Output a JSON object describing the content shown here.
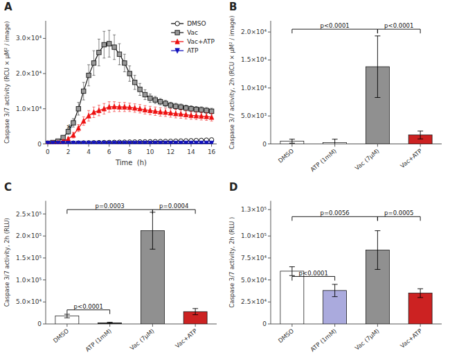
{
  "chart_data": [
    {
      "type": "line",
      "title": "A",
      "xlabel": "Time  (h)",
      "ylabel": "Caspase 3/7 activity (RCU × μM² / image)",
      "x": [
        0,
        0.5,
        1,
        1.5,
        2,
        2.5,
        3,
        3.5,
        4,
        4.5,
        5,
        5.5,
        6,
        6.5,
        7,
        7.5,
        8,
        8.5,
        9,
        9.5,
        10,
        10.5,
        11,
        11.5,
        12,
        12.5,
        13,
        13.5,
        14,
        14.5,
        15,
        15.5,
        16
      ],
      "xlim": [
        -0.2,
        16.5
      ],
      "xticks": [
        0,
        2,
        4,
        6,
        8,
        10,
        12,
        14,
        16
      ],
      "ylim": [
        0,
        35000
      ],
      "yticks": [
        0,
        {
          "value": 10000,
          "label": "1.0×10⁴"
        },
        {
          "value": 20000,
          "label": "2.0×10⁴"
        },
        {
          "value": 30000,
          "label": "3.0×10⁴"
        }
      ],
      "grid": false,
      "legend": "upper right",
      "series": [
        {
          "name": "DMSO",
          "color": "#111111",
          "marker": "circle",
          "values": [
            200,
            200,
            210,
            220,
            240,
            260,
            280,
            300,
            320,
            350,
            380,
            400,
            430,
            460,
            490,
            510,
            540,
            560,
            580,
            600,
            630,
            660,
            690,
            720,
            760,
            800,
            840,
            880,
            920,
            970,
            1020,
            1080,
            1150
          ],
          "errors": [
            60,
            60,
            60,
            60,
            70,
            70,
            70,
            70,
            70,
            80,
            80,
            80,
            80,
            80,
            80,
            80,
            80,
            80,
            80,
            80,
            80,
            80,
            80,
            80,
            80,
            80,
            80,
            80,
            80,
            80,
            80,
            80,
            80
          ]
        },
        {
          "name": "Vac",
          "color": "#222222",
          "marker": "square",
          "values": [
            200,
            400,
            800,
            1800,
            3500,
            6000,
            10000,
            15000,
            19500,
            23000,
            26000,
            28200,
            28500,
            27500,
            25500,
            23000,
            20000,
            17500,
            15500,
            14000,
            13000,
            12500,
            12000,
            11500,
            11000,
            10700,
            10500,
            10200,
            10000,
            9800,
            9700,
            9500,
            9300
          ],
          "errors": [
            100,
            150,
            300,
            600,
            800,
            1200,
            1800,
            2500,
            3000,
            3500,
            3800,
            3800,
            3800,
            3500,
            3000,
            2500,
            2200,
            2000,
            1700,
            1400,
            1200,
            1000,
            900,
            900,
            850,
            850,
            850,
            850,
            850,
            850,
            850,
            850,
            850
          ]
        },
        {
          "name": "Vac+ATP",
          "color": "#EE1111",
          "marker": "triangle-up",
          "values": [
            200,
            250,
            350,
            700,
            1400,
            2500,
            4500,
            6500,
            8000,
            9000,
            9500,
            10000,
            10500,
            10600,
            10500,
            10500,
            10400,
            10200,
            10000,
            9700,
            9500,
            9300,
            9100,
            9000,
            8800,
            8600,
            8500,
            8300,
            8100,
            8000,
            7900,
            7800,
            7600
          ],
          "errors": [
            100,
            100,
            200,
            300,
            500,
            800,
            1000,
            1200,
            1500,
            1500,
            1500,
            1500,
            1500,
            1400,
            1300,
            1300,
            1200,
            1200,
            1200,
            1200,
            1200,
            1200,
            1200,
            1200,
            1200,
            1200,
            1200,
            1200,
            1100,
            1100,
            1100,
            1100,
            1100
          ]
        },
        {
          "name": "ATP",
          "color": "#1111BB",
          "marker": "triangle-down",
          "values": [
            150,
            150,
            160,
            160,
            160,
            160,
            170,
            170,
            170,
            170,
            170,
            175,
            175,
            175,
            180,
            180,
            180,
            180,
            185,
            185,
            185,
            185,
            190,
            190,
            190,
            190,
            195,
            195,
            200,
            200,
            200,
            200,
            200
          ],
          "errors": [
            40,
            40,
            40,
            40,
            40,
            40,
            40,
            40,
            40,
            40,
            40,
            40,
            40,
            40,
            40,
            40,
            40,
            40,
            40,
            40,
            40,
            40,
            40,
            40,
            40,
            40,
            40,
            40,
            40,
            40,
            40,
            40,
            40
          ]
        }
      ],
      "annotations": [
        {
          "text": "*",
          "x": 2.1,
          "y": 4200
        }
      ]
    },
    {
      "type": "bar",
      "title": "B",
      "ylabel": "Caspase 3/7 activity, 2h (RCU × μM² / image)",
      "categories": [
        "DMSO",
        "ATP (1mM)",
        "Vac (7μM)",
        "Vac+ATP"
      ],
      "values": [
        500,
        250,
        13800,
        1600
      ],
      "errors": [
        350,
        600,
        5500,
        700
      ],
      "colors": [
        "#ffffff",
        "#ffffff",
        "#909090",
        "#CC2222"
      ],
      "ylim": [
        0,
        22000
      ],
      "yticks": [
        0,
        {
          "value": 5000,
          "label": "5.0×10³"
        },
        {
          "value": 10000,
          "label": "1.0×10⁴"
        },
        {
          "value": 15000,
          "label": "1.5×10⁴"
        },
        {
          "value": 20000,
          "label": "2.0×10⁴"
        }
      ],
      "grid": false,
      "annotations": [
        {
          "x1": "DMSO",
          "x2": "Vac (7μM)",
          "y": 20500,
          "text": "p<0.0001"
        },
        {
          "x1": "Vac (7μM)",
          "x2": "Vac+ATP",
          "y": 20500,
          "text": "p<0.0001"
        }
      ]
    },
    {
      "type": "bar",
      "title": "C",
      "ylabel": "Caspase 3/7 activity, 2h (RLU)",
      "categories": [
        "DMSO",
        "ATP (1mM)",
        "Vac (7μM)",
        "Vac+ATP"
      ],
      "values": [
        18000,
        2500,
        212000,
        28000
      ],
      "errors": [
        4000,
        1200,
        42000,
        7000
      ],
      "colors": [
        "#ffffff",
        "#333333",
        "#909090",
        "#CC2222"
      ],
      "ylim": [
        0,
        280000
      ],
      "yticks": [
        0,
        {
          "value": 50000,
          "label": "5.0×10⁴"
        },
        {
          "value": 100000,
          "label": "1.0×10⁵"
        },
        {
          "value": 150000,
          "label": "1.5×10⁵"
        },
        {
          "value": 200000,
          "label": "2.0×10⁵"
        },
        {
          "value": 250000,
          "label": "2.5×10⁵"
        }
      ],
      "grid": false,
      "annotations": [
        {
          "x1": "DMSO",
          "x2": "ATP (1mM)",
          "y": 32000,
          "text": "p<0.0001"
        },
        {
          "x1": "DMSO",
          "x2": "Vac (7μM)",
          "y": 260000,
          "text": "p=0.0003"
        },
        {
          "x1": "Vac (7μM)",
          "x2": "Vac+ATP",
          "y": 260000,
          "text": "p=0.0004"
        }
      ]
    },
    {
      "type": "bar",
      "title": "D",
      "ylabel": "Caspase 3/7 activity, 2h (RLU )",
      "categories": [
        "DMSO",
        "ATP (1mM)",
        "Vac (7μM)",
        "Vac+ATP"
      ],
      "values": [
        60000,
        38000,
        84000,
        35000
      ],
      "errors": [
        5000,
        7000,
        22000,
        5000
      ],
      "colors": [
        "#ffffff",
        "#aaaadd",
        "#909090",
        "#CC2222"
      ],
      "ylim": [
        0,
        140000
      ],
      "yticks": [
        0,
        {
          "value": 25000,
          "label": "2.5×10⁴"
        },
        {
          "value": 50000,
          "label": "5.0×10⁴"
        },
        {
          "value": 75000,
          "label": "7.5×10⁴"
        },
        {
          "value": 100000,
          "label": "1.0×10⁵"
        },
        {
          "value": 130000,
          "label": "1.3×10⁵"
        }
      ],
      "grid": false,
      "annotations": [
        {
          "x1": "DMSO",
          "x2": "ATP (1mM)",
          "y": 54000,
          "text": "p<0.0001"
        },
        {
          "x1": "DMSO",
          "x2": "Vac (7μM)",
          "y": 122000,
          "text": "p=0.0056"
        },
        {
          "x1": "Vac (7μM)",
          "x2": "Vac+ATP",
          "y": 122000,
          "text": "p=0.0005"
        }
      ]
    }
  ]
}
